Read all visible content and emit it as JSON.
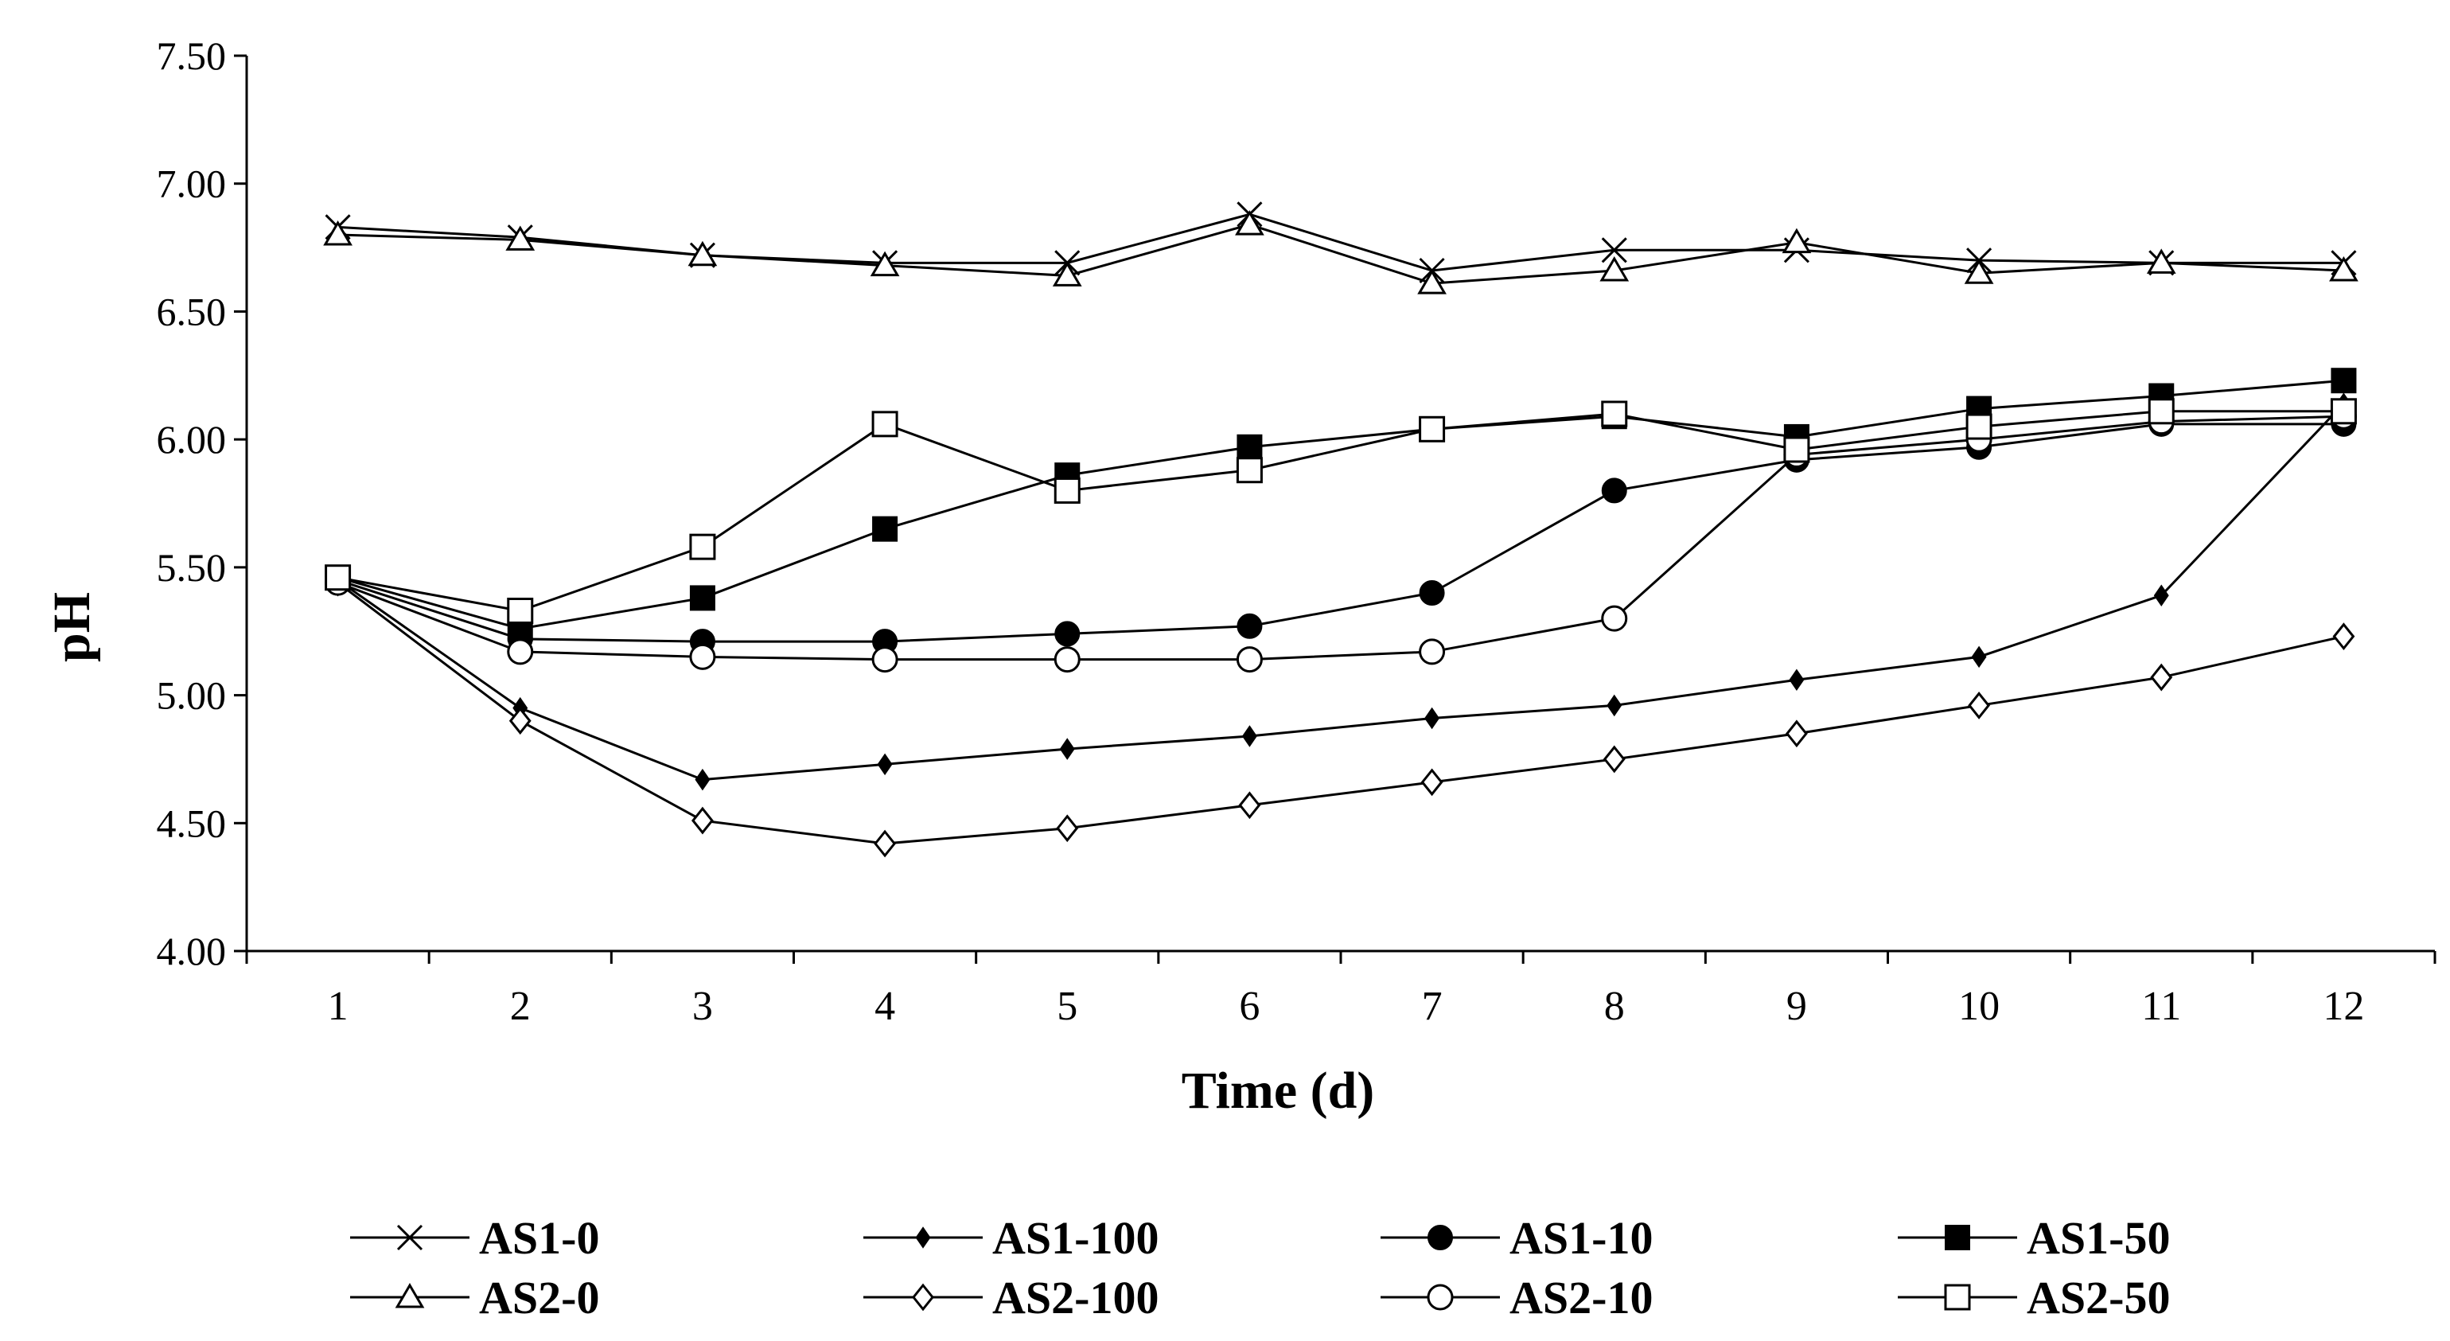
{
  "chart_data": {
    "type": "line",
    "title": "",
    "xlabel": "Time (d)",
    "ylabel": "pH",
    "x": [
      1,
      2,
      3,
      4,
      5,
      6,
      7,
      8,
      9,
      10,
      11,
      12
    ],
    "xticks": [
      "1",
      "2",
      "3",
      "4",
      "5",
      "6",
      "7",
      "8",
      "9",
      "10",
      "11",
      "12"
    ],
    "yticks": [
      "4.00",
      "4.50",
      "5.00",
      "5.50",
      "6.00",
      "6.50",
      "7.00",
      "7.50"
    ],
    "ylim": [
      4.0,
      7.5
    ],
    "grid": false,
    "legend_position": "bottom",
    "series": [
      {
        "name": "AS1-0",
        "marker": "x",
        "values": [
          6.83,
          6.79,
          6.72,
          6.69,
          6.69,
          6.88,
          6.66,
          6.74,
          6.74,
          6.7,
          6.69,
          6.69
        ]
      },
      {
        "name": "AS1-100",
        "marker": "diamond-filled",
        "values": [
          5.45,
          4.95,
          4.67,
          4.73,
          4.79,
          4.84,
          4.91,
          4.96,
          5.06,
          5.15,
          5.39,
          6.14
        ]
      },
      {
        "name": "AS1-10",
        "marker": "circle-filled",
        "values": [
          5.45,
          5.22,
          5.21,
          5.21,
          5.24,
          5.27,
          5.4,
          5.8,
          5.92,
          5.97,
          6.06,
          6.06
        ]
      },
      {
        "name": "AS1-50",
        "marker": "square-filled",
        "values": [
          5.46,
          5.26,
          5.38,
          5.65,
          5.86,
          5.97,
          6.04,
          6.09,
          6.01,
          6.12,
          6.17,
          6.23
        ]
      },
      {
        "name": "AS2-0",
        "marker": "triangle-open",
        "values": [
          6.8,
          6.78,
          6.72,
          6.68,
          6.64,
          6.84,
          6.61,
          6.66,
          6.77,
          6.65,
          6.69,
          6.66
        ]
      },
      {
        "name": "AS2-100",
        "marker": "diamond-open",
        "values": [
          5.44,
          4.9,
          4.51,
          4.42,
          4.48,
          4.57,
          4.66,
          4.75,
          4.85,
          4.96,
          5.07,
          5.23
        ]
      },
      {
        "name": "AS2-10",
        "marker": "circle-open",
        "values": [
          5.44,
          5.17,
          5.15,
          5.14,
          5.14,
          5.14,
          5.17,
          5.3,
          5.94,
          6.0,
          6.07,
          6.09
        ]
      },
      {
        "name": "AS2-50",
        "marker": "square-open",
        "values": [
          5.46,
          5.33,
          5.58,
          6.06,
          5.8,
          5.88,
          6.04,
          6.1,
          5.96,
          6.05,
          6.11,
          6.11
        ]
      }
    ]
  }
}
